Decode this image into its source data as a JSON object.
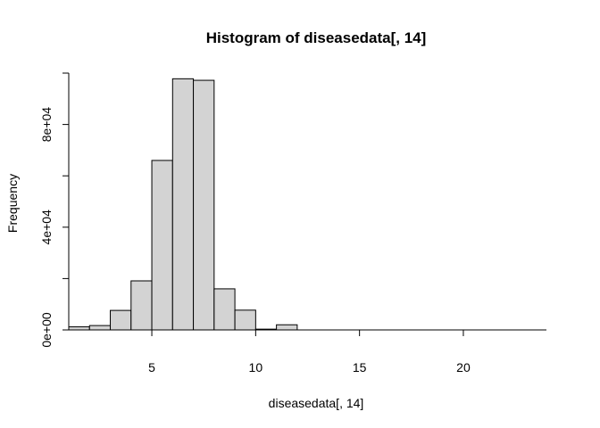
{
  "chart_data": {
    "type": "bar",
    "title": "Histogram of diseasedata[, 14]",
    "xlabel": "diseasedata[, 14]",
    "ylabel": "Frequency",
    "bin_edges": [
      1,
      2,
      3,
      4,
      5,
      6,
      7,
      8,
      9,
      10,
      11,
      12,
      13,
      14,
      15,
      16,
      17,
      18,
      19,
      20,
      21,
      22,
      23,
      24
    ],
    "values": [
      1200,
      1700,
      7600,
      19100,
      66000,
      97800,
      97200,
      16000,
      7700,
      300,
      2000,
      0,
      0,
      0,
      0,
      0,
      0,
      0,
      0,
      0,
      0,
      0,
      0
    ],
    "xlim": [
      1,
      24
    ],
    "ylim": [
      0,
      100000
    ],
    "x_ticks": [
      5,
      10,
      15,
      20
    ],
    "x_tick_labels": [
      "5",
      "10",
      "15",
      "20"
    ],
    "y_ticks": [
      0,
      40000,
      80000
    ],
    "y_tick_labels": [
      "0e+00",
      "4e+04",
      "8e+04"
    ],
    "y_minor_ticks": [
      20000,
      60000,
      100000
    ],
    "bar_color": "#d3d3d3",
    "grid": false
  }
}
